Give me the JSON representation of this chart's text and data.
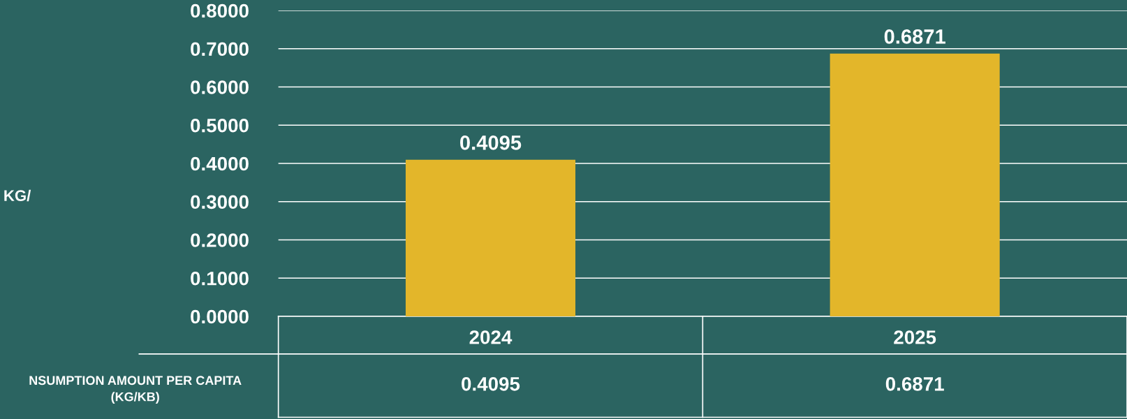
{
  "chart_data": {
    "type": "bar",
    "categories": [
      "2024",
      "2025"
    ],
    "series": [
      {
        "color": "#e3b62a",
        "values": [
          0.4095,
          0.6871
        ],
        "value_labels": [
          "0.4095",
          "0.6871"
        ]
      }
    ],
    "ylim": [
      0,
      0.8
    ],
    "yticks": [
      {
        "value": 0,
        "label": "0.0000"
      },
      {
        "value": 0.1,
        "label": "0.1000"
      },
      {
        "value": 0.2,
        "label": "0.2000"
      },
      {
        "value": 0.3,
        "label": "0.3000"
      },
      {
        "value": 0.4,
        "label": "0.4000"
      },
      {
        "value": 0.5,
        "label": "0.5000"
      },
      {
        "value": 0.6,
        "label": "0.6000"
      },
      {
        "value": 0.7,
        "label": "0.7000"
      },
      {
        "value": 0.8,
        "label": "0.8000"
      }
    ],
    "grid": "y",
    "annotations": [
      "KG/",
      "NSUMPTION AMOUNT PER CAPITA\n(KG/KB)"
    ]
  }
}
